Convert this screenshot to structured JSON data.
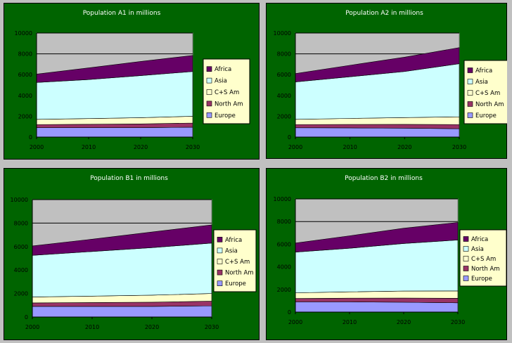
{
  "colors": {
    "page_bg": "#c0c0c0",
    "panel_bg": "#006400",
    "plot_bg": "#c0c0c0",
    "legend_bg": "#ffffcc",
    "Europe": "#9999ff",
    "North Am": "#993366",
    "C+S Am": "#ffffcc",
    "Asia": "#ccffff",
    "Africa": "#660066"
  },
  "chart_data": [
    {
      "type": "area",
      "stacked": true,
      "title": "Population A1 in millions",
      "x": [
        2000,
        2010,
        2020,
        2030
      ],
      "ylim": [
        0,
        10000
      ],
      "yticks": [
        0,
        2000,
        4000,
        6000,
        8000,
        10000
      ],
      "grid": "horizontal",
      "legend_position": "right",
      "series": [
        {
          "name": "Europe",
          "values": [
            900,
            900,
            900,
            950
          ]
        },
        {
          "name": "North Am",
          "values": [
            300,
            330,
            360,
            400
          ]
        },
        {
          "name": "C+S Am",
          "values": [
            500,
            550,
            600,
            650
          ]
        },
        {
          "name": "Asia",
          "values": [
            3550,
            3750,
            4050,
            4300
          ]
        },
        {
          "name": "Africa",
          "values": [
            800,
            1120,
            1360,
            1550
          ]
        }
      ]
    },
    {
      "type": "area",
      "stacked": true,
      "title": "Population A2 in millions",
      "x": [
        2000,
        2010,
        2020,
        2030
      ],
      "ylim": [
        0,
        10000
      ],
      "yticks": [
        0,
        2000,
        4000,
        6000,
        8000,
        10000
      ],
      "grid": "horizontal",
      "legend_position": "right",
      "series": [
        {
          "name": "Europe",
          "values": [
            900,
            880,
            860,
            800
          ]
        },
        {
          "name": "North Am",
          "values": [
            300,
            330,
            360,
            400
          ]
        },
        {
          "name": "C+S Am",
          "values": [
            500,
            580,
            650,
            750
          ]
        },
        {
          "name": "Asia",
          "values": [
            3600,
            4010,
            4430,
            5100
          ]
        },
        {
          "name": "Africa",
          "values": [
            800,
            1100,
            1380,
            1550
          ]
        }
      ]
    },
    {
      "type": "area",
      "stacked": true,
      "title": "Population B1 in millions",
      "x": [
        2000,
        2010,
        2020,
        2030
      ],
      "ylim": [
        0,
        10000
      ],
      "yticks": [
        0,
        2000,
        4000,
        6000,
        8000,
        10000
      ],
      "grid": "horizontal",
      "legend_position": "right",
      "series": [
        {
          "name": "Europe",
          "values": [
            900,
            900,
            900,
            950
          ]
        },
        {
          "name": "North Am",
          "values": [
            300,
            330,
            360,
            400
          ]
        },
        {
          "name": "C+S Am",
          "values": [
            500,
            550,
            600,
            650
          ]
        },
        {
          "name": "Asia",
          "values": [
            3550,
            3800,
            4050,
            4300
          ]
        },
        {
          "name": "Africa",
          "values": [
            800,
            1050,
            1330,
            1550
          ]
        }
      ]
    },
    {
      "type": "area",
      "stacked": true,
      "title": "Population B2 in millions",
      "x": [
        2000,
        2010,
        2020,
        2030
      ],
      "ylim": [
        0,
        10000
      ],
      "yticks": [
        0,
        2000,
        4000,
        6000,
        8000,
        10000
      ],
      "grid": "horizontal",
      "legend_position": "right",
      "series": [
        {
          "name": "Europe",
          "values": [
            900,
            900,
            870,
            820
          ]
        },
        {
          "name": "North Am",
          "values": [
            300,
            330,
            370,
            400
          ]
        },
        {
          "name": "C+S Am",
          "values": [
            500,
            560,
            620,
            650
          ]
        },
        {
          "name": "Asia",
          "values": [
            3600,
            3850,
            4200,
            4500
          ]
        },
        {
          "name": "Africa",
          "values": [
            800,
            1100,
            1350,
            1550
          ]
        }
      ]
    }
  ]
}
